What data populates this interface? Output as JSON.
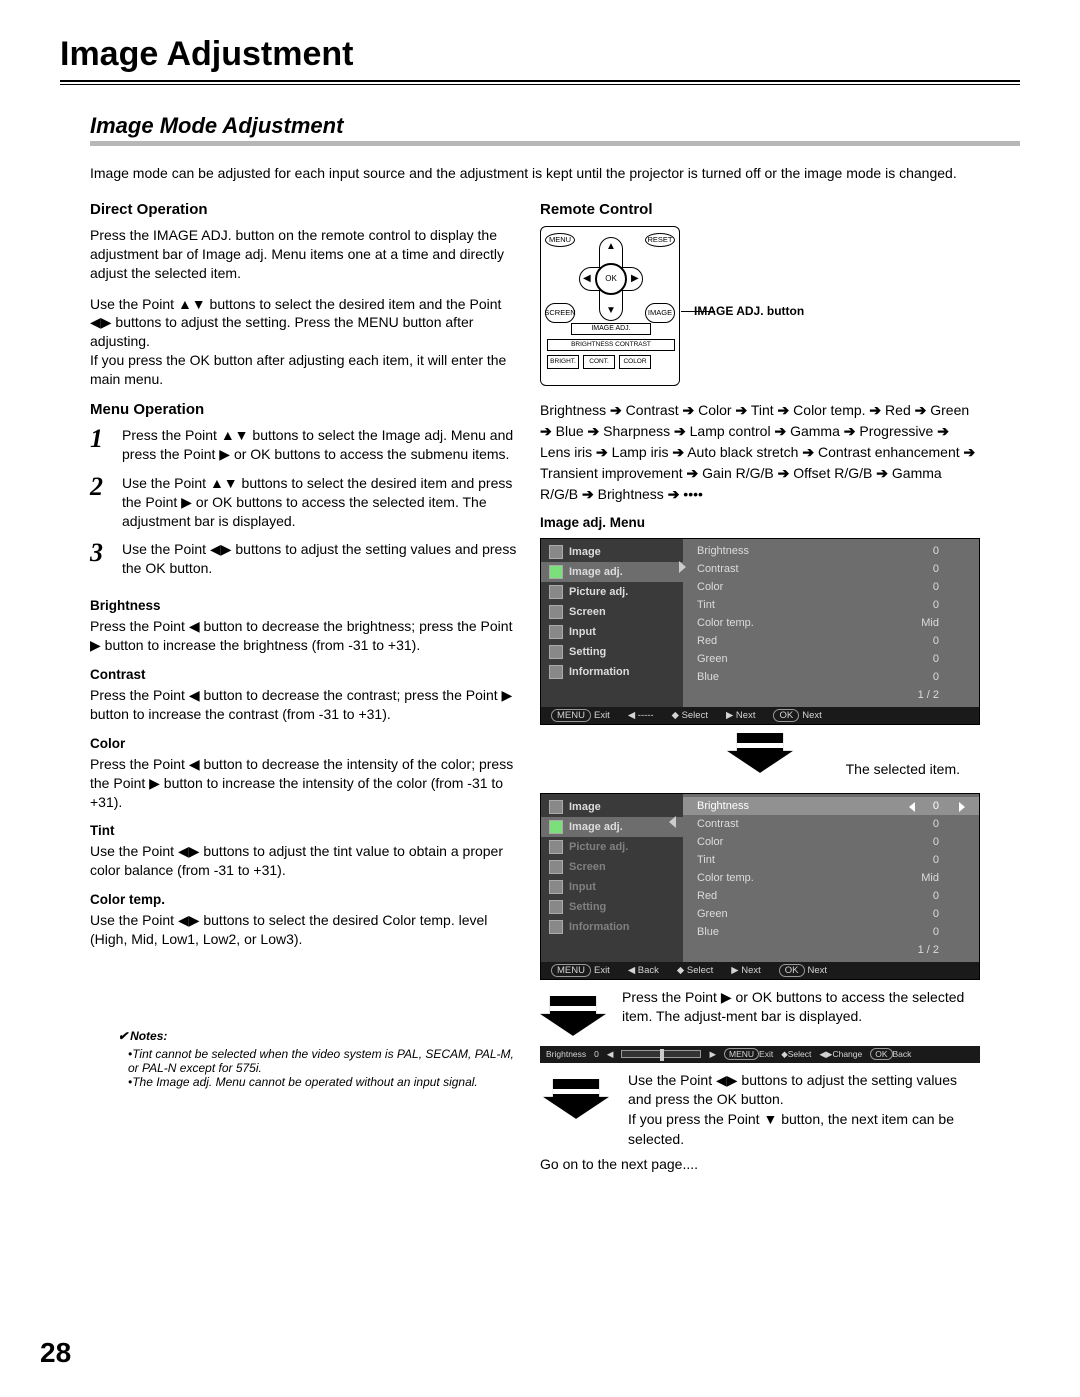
{
  "page": {
    "title": "Image Adjustment",
    "section": "Image Mode Adjustment",
    "intro": "Image mode can be adjusted for each input source and the adjustment is kept until the projector is turned off or the image mode is changed.",
    "page_number": "28",
    "go_on": "Go on to the next page...."
  },
  "direct_op": {
    "heading": "Direct Operation",
    "p1": "Press the IMAGE ADJ. button on the remote control to display the adjustment bar of Image adj. Menu items one at a time and directly adjust the selected item.",
    "p2a": "Use the Point ",
    "p2b": " buttons to select the desired item and the Point ",
    "p2c": " buttons to adjust the setting. Press the MENU button after adjusting.",
    "p3": "If you press the OK button after adjusting each item, it will enter the main menu."
  },
  "menu_op": {
    "heading": "Menu Operation",
    "s1a": "Press the Point ",
    "s1b": " buttons to select the Image adj. Menu and press the Point ",
    "s1c": " or OK buttons to access the submenu items.",
    "s2a": "Use the Point ",
    "s2b": " buttons to select the desired item and press the Point ",
    "s2c": " or OK buttons to access the selected item. The adjustment bar is displayed.",
    "s3a": "Use the Point ",
    "s3b": " buttons to adjust the setting values and press the OK button."
  },
  "params": {
    "brightness": {
      "h": "Brightness",
      "t": "Press the Point ◀ button to decrease the brightness; press the Point ▶ button to increase the brightness (from -31 to +31)."
    },
    "contrast": {
      "h": "Contrast",
      "t": "Press the Point ◀ button to decrease the contrast; press the Point ▶ button to increase the contrast (from -31 to +31)."
    },
    "color": {
      "h": "Color",
      "t": "Press the Point ◀ button to decrease the intensity of the color; press the Point ▶ button to increase the intensity of the color (from -31 to +31)."
    },
    "tint": {
      "h": "Tint",
      "t": "Use the Point ◀▶ buttons to adjust the tint value to obtain a proper color balance (from -31 to +31)."
    },
    "colortemp": {
      "h": "Color temp.",
      "t": "Use the Point ◀▶ buttons to select the desired Color temp. level (High, Mid, Low1, Low2, or Low3)."
    }
  },
  "notes": {
    "heading": "Notes:",
    "n1": "Tint cannot be selected when the video system is PAL, SECAM, PAL-M, or PAL-N except for 575i.",
    "n2": "The Image adj. Menu cannot be operated without an input signal."
  },
  "remote": {
    "heading": "Remote Control",
    "menu": "MENU",
    "reset": "RESET",
    "ok": "OK",
    "screen": "SCREEN",
    "image": "IMAGE",
    "imageadj": "IMAGE ADJ.",
    "row2": "BRIGHTNESS   CONTRAST",
    "bright": "BRIGHT.",
    "cont": "CONT.",
    "colorbtn": "COLOR",
    "callout": "IMAGE ADJ. button"
  },
  "chain": {
    "items": [
      "Brightness",
      "Contrast",
      "Color",
      "Tint",
      "Color temp.",
      "Red",
      "Green",
      "Blue",
      "Sharpness",
      "Lamp control",
      "Gamma",
      "Progressive",
      "Lens iris",
      "Lamp iris",
      "Auto black stretch",
      "Contrast enhancement",
      "Transient improvement",
      "Gain R/G/B",
      "Offset R/G/B",
      "Gamma R/G/B",
      "Brightness"
    ],
    "trail": "••••"
  },
  "osd": {
    "heading": "Image adj. Menu",
    "left": [
      "Image",
      "Image adj.",
      "Picture adj.",
      "Screen",
      "Input",
      "Setting",
      "Information"
    ],
    "right": [
      {
        "k": "Brightness",
        "v": "0"
      },
      {
        "k": "Contrast",
        "v": "0"
      },
      {
        "k": "Color",
        "v": "0"
      },
      {
        "k": "Tint",
        "v": "0"
      },
      {
        "k": "Color temp.",
        "v": "Mid"
      },
      {
        "k": "Red",
        "v": "0"
      },
      {
        "k": "Green",
        "v": "0"
      },
      {
        "k": "Blue",
        "v": "0"
      }
    ],
    "page": "1 / 2",
    "foot1": {
      "exit": "Exit",
      "sep": "-----",
      "select": "Select",
      "next": "Next",
      "ok": "Next",
      "menu": "MENU",
      "okbtn": "OK"
    },
    "foot2": {
      "exit": "Exit",
      "back": "Back",
      "select": "Select",
      "next": "Next",
      "ok": "Next"
    },
    "selected_callout": "The selected item."
  },
  "captions": {
    "c1": "Press the Point ▶ or OK buttons to access the selected item. The adjust-ment bar is displayed.",
    "c2a": "Use the Point ",
    "c2b": " buttons to adjust the setting values and press the OK button.",
    "c2c": "If you press the Point ▼ button, the next item can be selected."
  },
  "adjbar": {
    "label": "Brightness",
    "val": "0",
    "exit": "Exit",
    "select": "Select",
    "change": "Change",
    "back": "Back",
    "menu": "MENU",
    "ok": "OK"
  },
  "glyphs": {
    "ud": "▲▼",
    "lr": "◀▶",
    "r": "▶",
    "d": "▼",
    "l": "◀",
    "u": "▲"
  },
  "colors": {
    "osd_bg": "#6d6d6d",
    "osd_left_bg": "#3a3a3a",
    "osd_hl": "#919191",
    "osd_foot": "#1a1a1a",
    "gray_rule": "#b7b7b7"
  }
}
